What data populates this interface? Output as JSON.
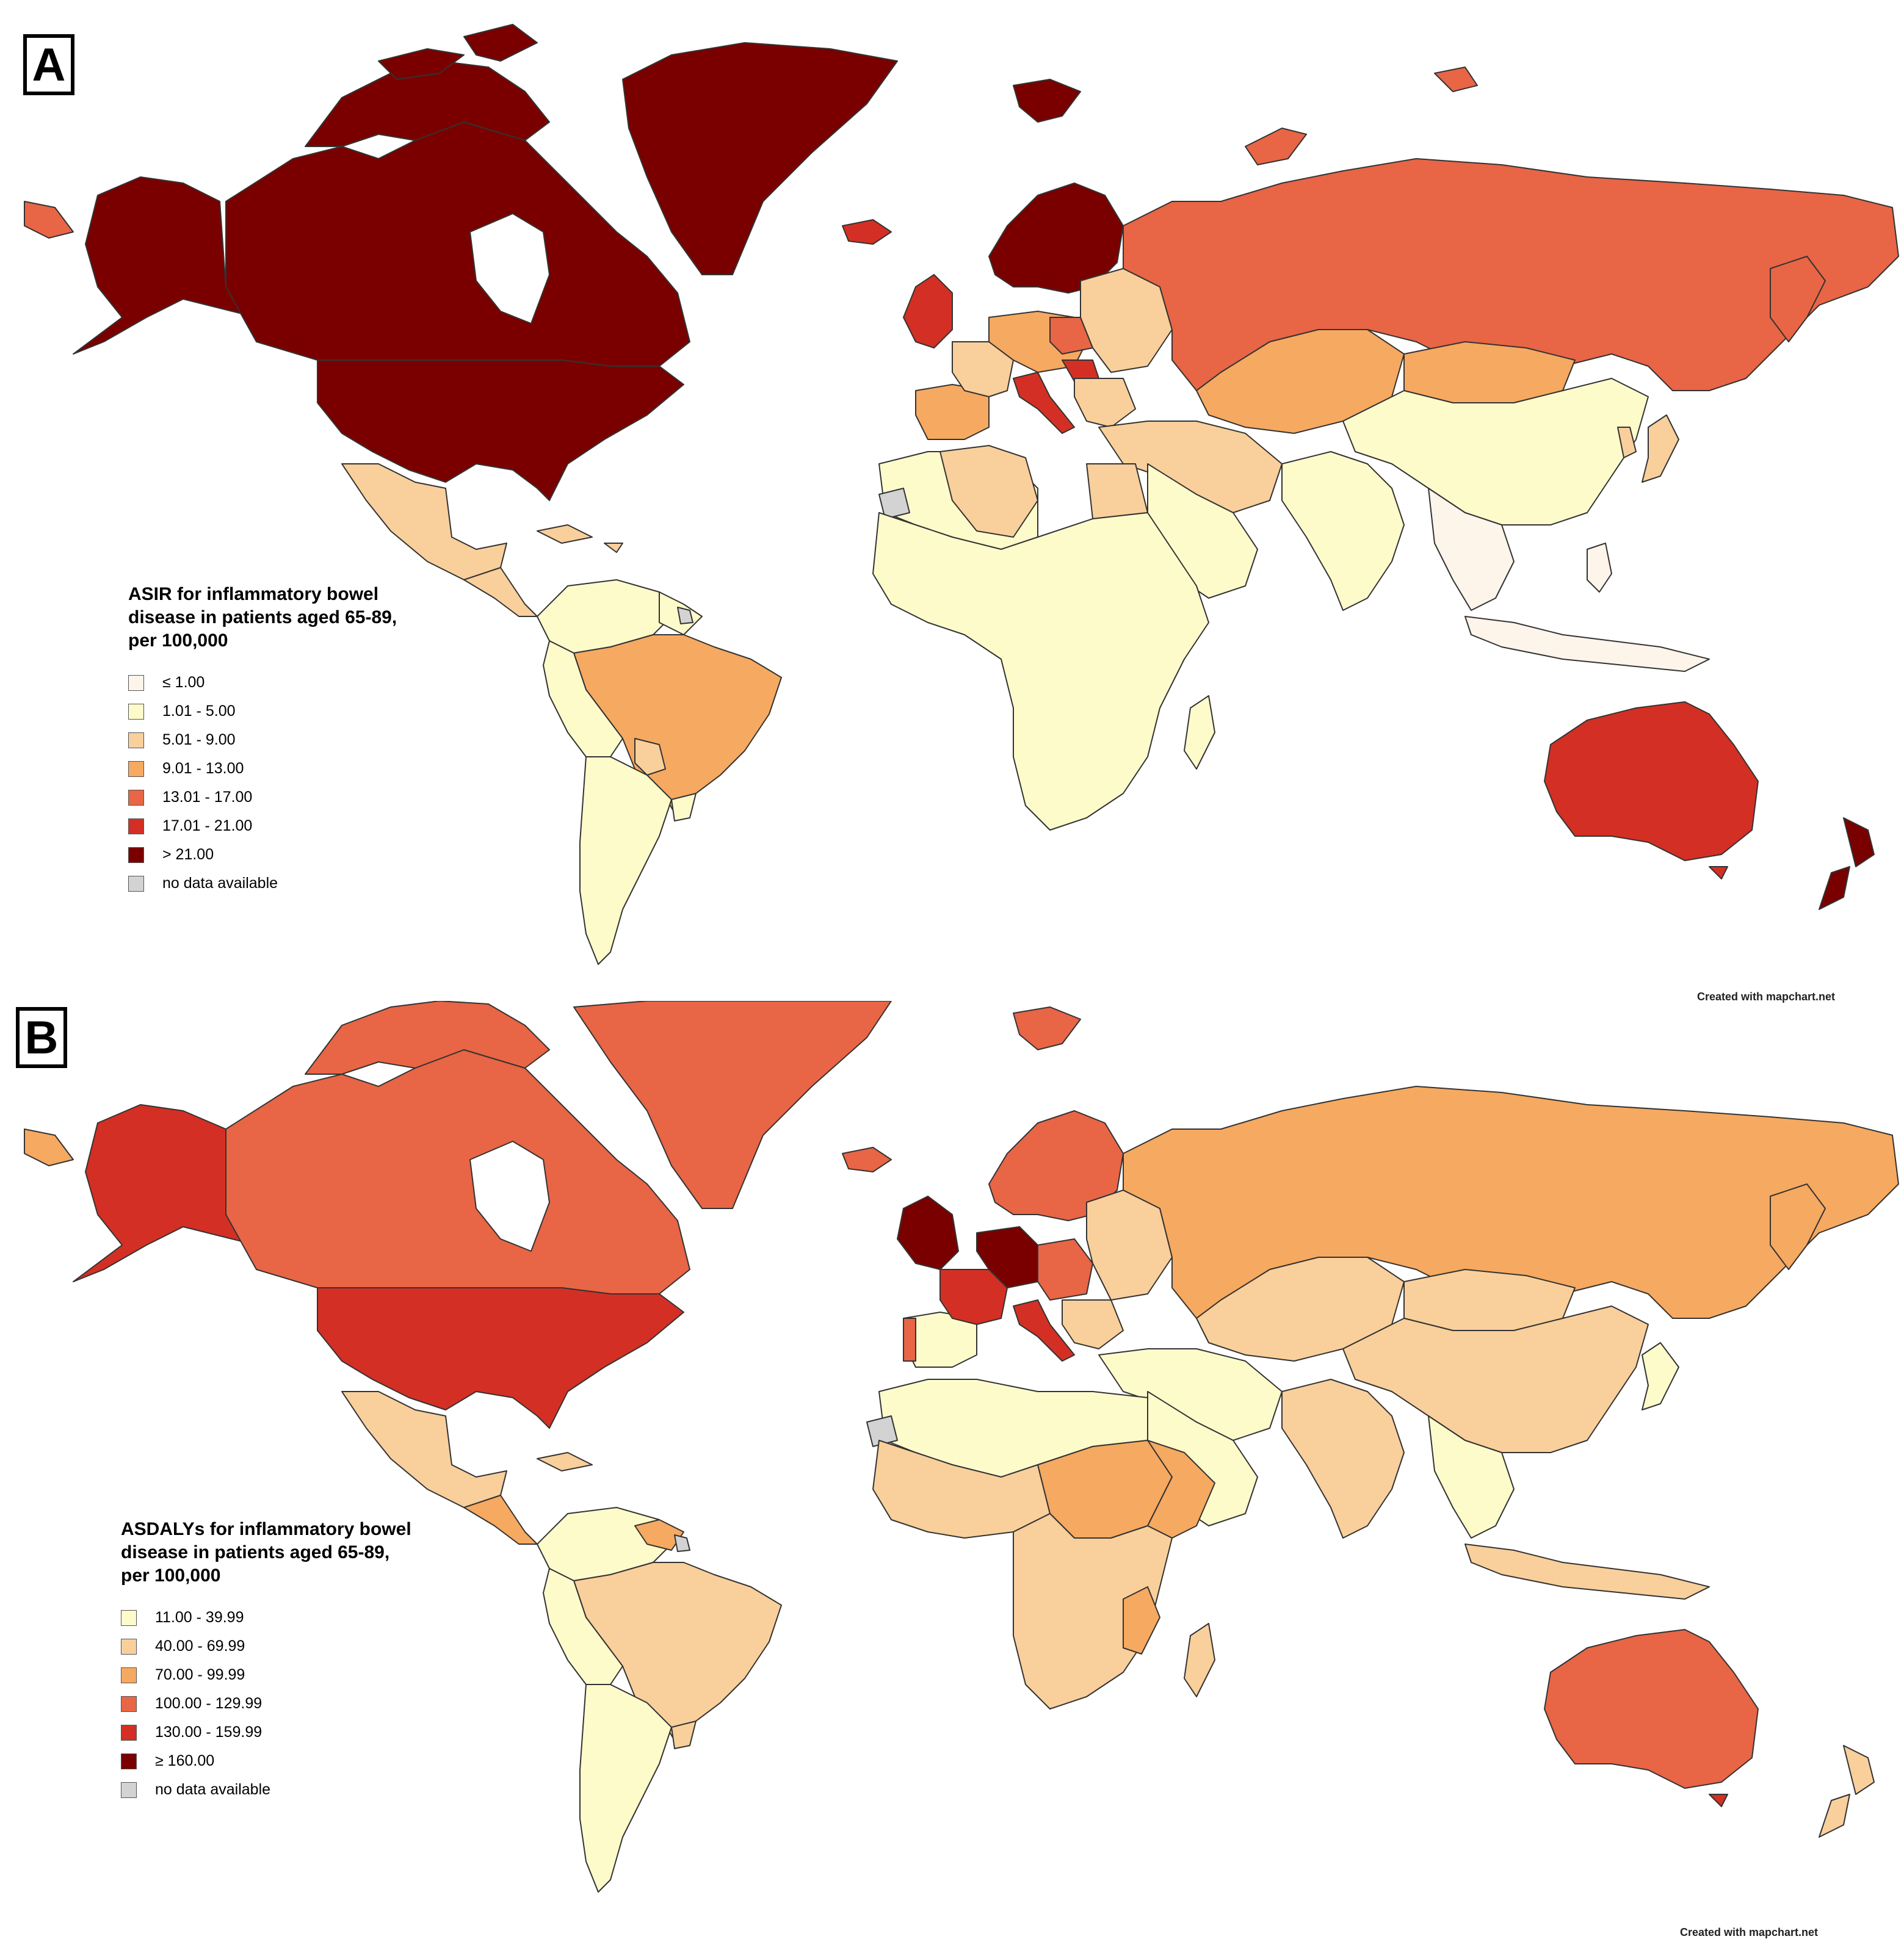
{
  "colors": {
    "ocean": "#ffffff",
    "border": "#333333",
    "no_data": "#d3d3d3"
  },
  "panel_a": {
    "letter": "A",
    "legend_title": "ASIR for inflammatory bowel\ndisease in patients aged 65-89,\nper 100,000",
    "legend": [
      {
        "label": "≤ 1.00",
        "color": "#fdf4ea"
      },
      {
        "label": "1.01 - 5.00",
        "color": "#fefbcb"
      },
      {
        "label": "5.01 - 9.00",
        "color": "#f9cf9b"
      },
      {
        "label": "9.01 - 13.00",
        "color": "#f6a960"
      },
      {
        "label": "13.01 - 17.00",
        "color": "#e86545"
      },
      {
        "label": "17.01 - 21.00",
        "color": "#d42f24"
      },
      {
        "label": "> 21.00",
        "color": "#7a0000"
      },
      {
        "label": "no data available",
        "color": "#d3d3d3"
      }
    ],
    "credit": "Created with mapchart.net"
  },
  "panel_b": {
    "letter": "B",
    "legend_title": "ASDALYs for inflammatory bowel\ndisease in patients aged 65-89,\nper 100,000",
    "legend": [
      {
        "label": "11.00 - 39.99",
        "color": "#fefbcb"
      },
      {
        "label": "40.00 - 69.99",
        "color": "#f9cf9b"
      },
      {
        "label": "70.00 - 99.99",
        "color": "#f6a960"
      },
      {
        "label": "100.00 - 129.99",
        "color": "#e86545"
      },
      {
        "label": "130.00 - 159.99",
        "color": "#d42f24"
      },
      {
        "label": "≥ 160.00",
        "color": "#7a0000"
      },
      {
        "label": "no data available",
        "color": "#d3d3d3"
      }
    ],
    "credit": "Created with mapchart.net"
  }
}
